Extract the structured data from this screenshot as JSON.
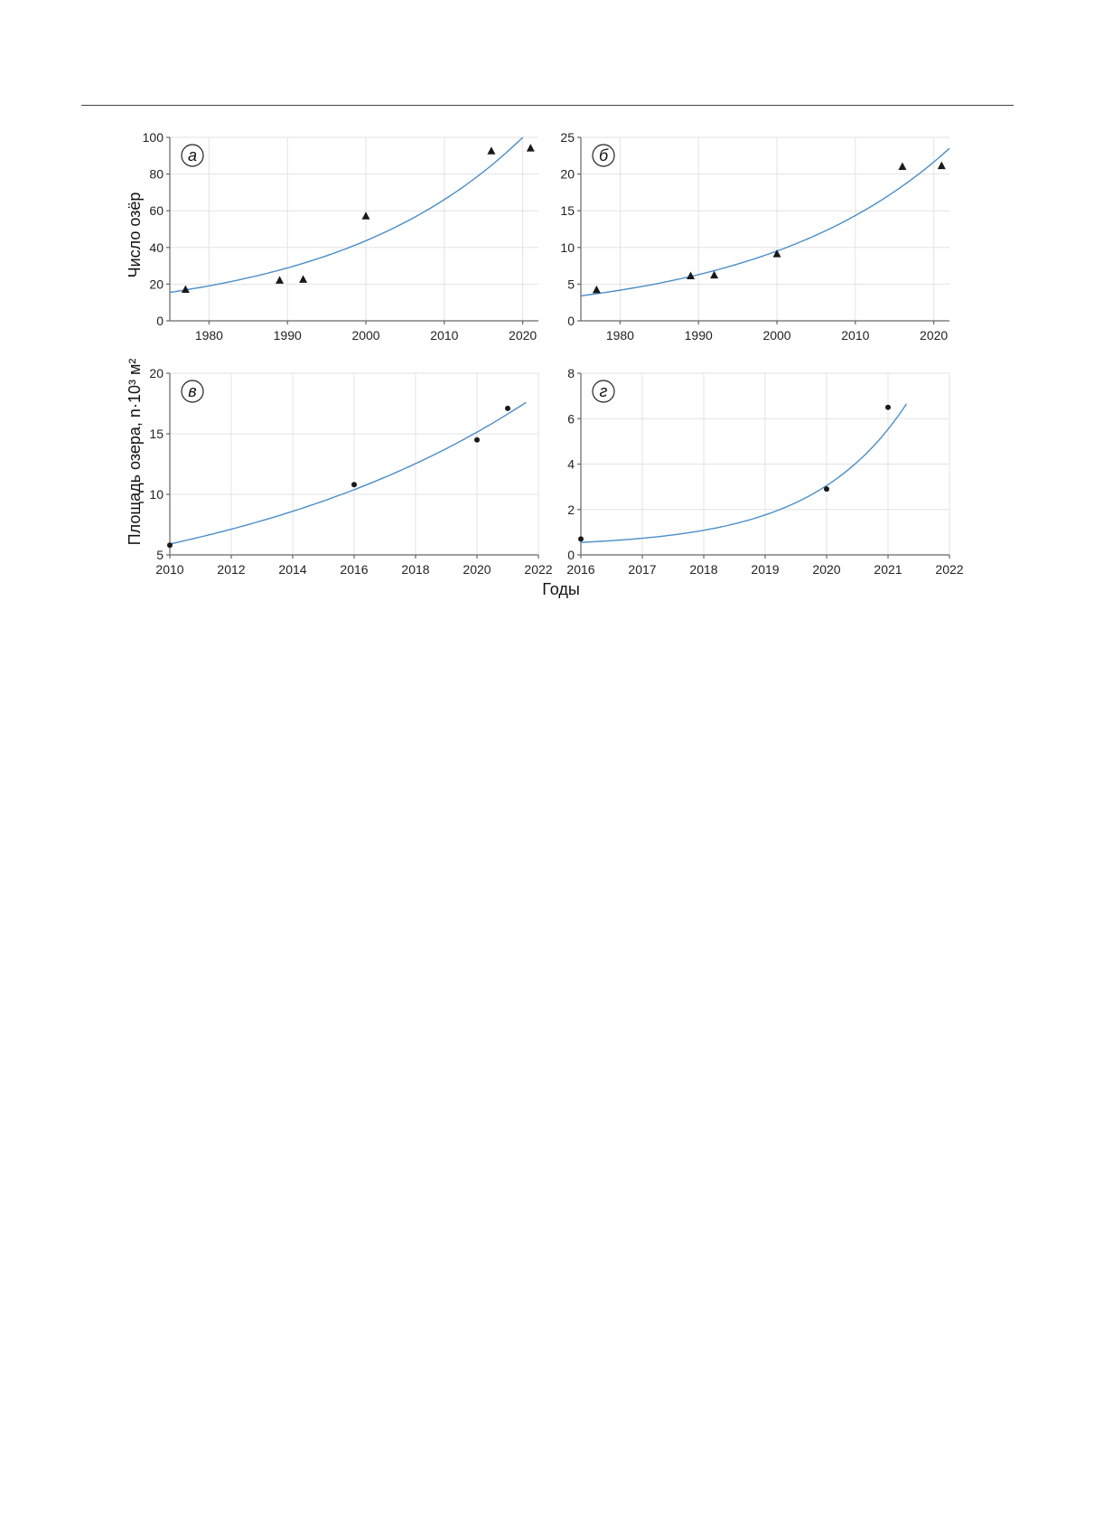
{
  "figure": {
    "y_label_top": "Число озёр",
    "y_label_bottom": "Площадь озера, n·10³ м²",
    "x_label": "Годы",
    "fit_color": "#4a8ec8",
    "point_color": "#1a1a1a"
  },
  "chart_data": [
    {
      "type": "scatter",
      "panel": "а",
      "xlabel": "",
      "ylabel": "Число озёр",
      "xlim": [
        1975,
        2022
      ],
      "ylim": [
        0,
        100
      ],
      "xticks": [
        1980,
        1990,
        2000,
        2010,
        2020
      ],
      "yticks": [
        0,
        20,
        40,
        60,
        80,
        100
      ],
      "marker": "triangle",
      "points": [
        [
          1977,
          17
        ],
        [
          1989,
          22
        ],
        [
          1992,
          22.5
        ],
        [
          2000,
          57
        ],
        [
          2016,
          92.5
        ],
        [
          2021,
          94
        ]
      ],
      "fit": {
        "kind": "exponential",
        "points": [
          [
            1975,
            15.5
          ],
          [
            2020,
            100
          ]
        ]
      },
      "grid": true
    },
    {
      "type": "scatter",
      "panel": "б",
      "xlabel": "",
      "ylabel": "",
      "xlim": [
        1975,
        2022
      ],
      "ylim": [
        0,
        25
      ],
      "xticks": [
        1980,
        1990,
        2000,
        2010,
        2020
      ],
      "yticks": [
        0,
        5,
        10,
        15,
        20,
        25
      ],
      "marker": "triangle",
      "points": [
        [
          1977,
          4.2
        ],
        [
          1989,
          6.1
        ],
        [
          1992,
          6.2
        ],
        [
          2000,
          9.1
        ],
        [
          2016,
          21
        ],
        [
          2021,
          21.1
        ]
      ],
      "fit": {
        "kind": "exponential",
        "points": [
          [
            1975,
            3.4
          ],
          [
            2022,
            23.5
          ]
        ]
      },
      "grid": true
    },
    {
      "type": "scatter",
      "panel": "в",
      "xlabel": "Годы",
      "ylabel": "Площадь озера, n·10³ м²",
      "xlim": [
        2010,
        2022
      ],
      "ylim": [
        5,
        20
      ],
      "xticks": [
        2010,
        2012,
        2014,
        2016,
        2018,
        2020,
        2022
      ],
      "yticks": [
        5,
        10,
        15,
        20
      ],
      "marker": "circle",
      "points": [
        [
          2010,
          5.8
        ],
        [
          2016,
          10.8
        ],
        [
          2020,
          14.5
        ],
        [
          2021,
          17.1
        ]
      ],
      "fit": {
        "kind": "exponential",
        "points": [
          [
            2010,
            5.9
          ],
          [
            2021.6,
            17.6
          ]
        ]
      },
      "grid": true
    },
    {
      "type": "scatter",
      "panel": "г",
      "xlabel": "Годы",
      "ylabel": "",
      "xlim": [
        2016,
        2022
      ],
      "ylim": [
        0,
        8
      ],
      "xticks": [
        2016,
        2017,
        2018,
        2019,
        2020,
        2021,
        2022
      ],
      "yticks": [
        0,
        2,
        4,
        6,
        8
      ],
      "marker": "circle",
      "points": [
        [
          2016,
          0.7
        ],
        [
          2020,
          2.9
        ],
        [
          2021,
          6.5
        ]
      ],
      "fit": {
        "kind": "exponential",
        "base": 0.35,
        "points": [
          [
            2016,
            0.55
          ],
          [
            2021.3,
            6.65
          ]
        ]
      },
      "grid": true
    }
  ]
}
